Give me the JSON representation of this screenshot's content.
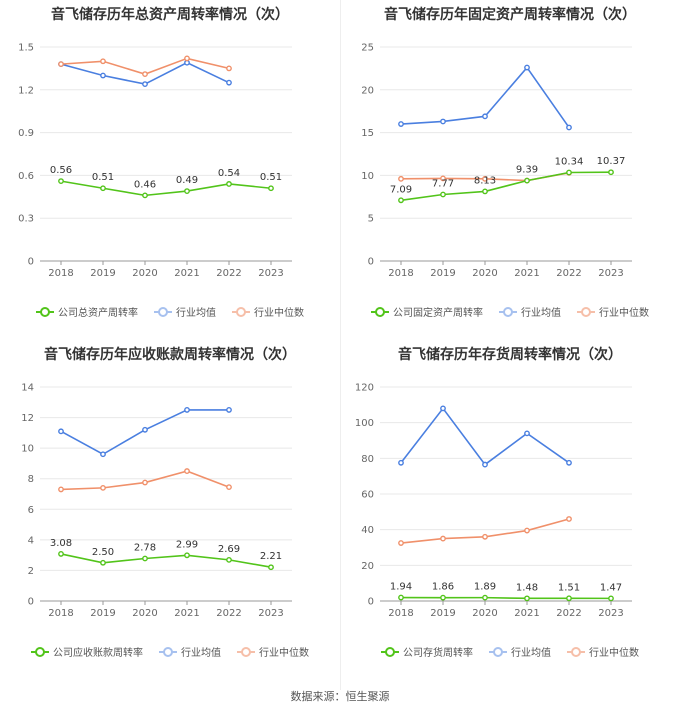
{
  "source": "数据来源：恒生聚源",
  "chart_data": [
    {
      "type": "line",
      "title": "音飞储存历年总资产周转率情况（次）",
      "categories": [
        "2018",
        "2019",
        "2020",
        "2021",
        "2022",
        "2023"
      ],
      "ylim": [
        0,
        1.5
      ],
      "yticks": [
        "0",
        "0.3",
        "0.6",
        "0.9",
        "1.2",
        "1.5"
      ],
      "grid": true,
      "legend_position": "bottom",
      "series": [
        {
          "name": "公司总资产周转率",
          "color": "#52c41a",
          "labels": true,
          "values": [
            0.56,
            0.51,
            0.46,
            0.49,
            0.54,
            0.51
          ],
          "value_labels": [
            "0.56",
            "0.51",
            "0.46",
            "0.49",
            "0.54",
            "0.51"
          ]
        },
        {
          "name": "行业均值",
          "color": "#4a7fe0",
          "labels": false,
          "values": [
            1.38,
            1.3,
            1.24,
            1.39,
            1.25,
            null
          ]
        },
        {
          "name": "行业中位数",
          "color": "#f0906a",
          "labels": false,
          "values": [
            1.38,
            1.4,
            1.31,
            1.42,
            1.35,
            null
          ]
        }
      ]
    },
    {
      "type": "line",
      "title": "音飞储存历年固定资产周转率情况（次）",
      "categories": [
        "2018",
        "2019",
        "2020",
        "2021",
        "2022",
        "2023"
      ],
      "ylim": [
        0,
        25
      ],
      "yticks": [
        "0",
        "5",
        "10",
        "15",
        "20",
        "25"
      ],
      "grid": true,
      "legend_position": "bottom",
      "series": [
        {
          "name": "公司固定资产周转率",
          "color": "#52c41a",
          "labels": true,
          "values": [
            7.09,
            7.77,
            8.13,
            9.39,
            10.34,
            10.37
          ],
          "value_labels": [
            "7.09",
            "7.77",
            "8.13",
            "9.39",
            "10.34",
            "10.37"
          ]
        },
        {
          "name": "行业均值",
          "color": "#4a7fe0",
          "labels": false,
          "values": [
            16.0,
            16.3,
            16.9,
            22.6,
            15.6,
            null
          ]
        },
        {
          "name": "行业中位数",
          "color": "#f0906a",
          "labels": false,
          "values": [
            9.6,
            9.65,
            9.6,
            9.4,
            10.3,
            null
          ]
        }
      ]
    },
    {
      "type": "line",
      "title": "音飞储存历年应收账款周转率情况（次）",
      "categories": [
        "2018",
        "2019",
        "2020",
        "2021",
        "2022",
        "2023"
      ],
      "ylim": [
        0,
        14
      ],
      "yticks": [
        "0",
        "2",
        "4",
        "6",
        "8",
        "10",
        "12",
        "14"
      ],
      "grid": true,
      "legend_position": "bottom",
      "series": [
        {
          "name": "公司应收账款周转率",
          "color": "#52c41a",
          "labels": true,
          "values": [
            3.08,
            2.5,
            2.78,
            2.99,
            2.69,
            2.21
          ],
          "value_labels": [
            "3.08",
            "2.50",
            "2.78",
            "2.99",
            "2.69",
            "2.21"
          ]
        },
        {
          "name": "行业均值",
          "color": "#4a7fe0",
          "labels": false,
          "values": [
            11.1,
            9.6,
            11.2,
            12.5,
            12.5,
            null
          ]
        },
        {
          "name": "行业中位数",
          "color": "#f0906a",
          "labels": false,
          "values": [
            7.3,
            7.4,
            7.75,
            8.5,
            7.45,
            null
          ]
        }
      ]
    },
    {
      "type": "line",
      "title": "音飞储存历年存货周转率情况（次）",
      "categories": [
        "2018",
        "2019",
        "2020",
        "2021",
        "2022",
        "2023"
      ],
      "ylim": [
        0,
        120
      ],
      "yticks": [
        "0",
        "20",
        "40",
        "60",
        "80",
        "100",
        "120"
      ],
      "grid": true,
      "legend_position": "bottom",
      "series": [
        {
          "name": "公司存货周转率",
          "color": "#52c41a",
          "labels": true,
          "values": [
            1.94,
            1.86,
            1.89,
            1.48,
            1.51,
            1.47
          ],
          "value_labels": [
            "1.94",
            "1.86",
            "1.89",
            "1.48",
            "1.51",
            "1.47"
          ]
        },
        {
          "name": "行业均值",
          "color": "#4a7fe0",
          "labels": false,
          "values": [
            77.5,
            108,
            76.5,
            94,
            77.5,
            null
          ]
        },
        {
          "name": "行业中位数",
          "color": "#f0906a",
          "labels": false,
          "values": [
            32.5,
            35,
            36,
            39.5,
            46,
            null
          ]
        }
      ]
    }
  ]
}
